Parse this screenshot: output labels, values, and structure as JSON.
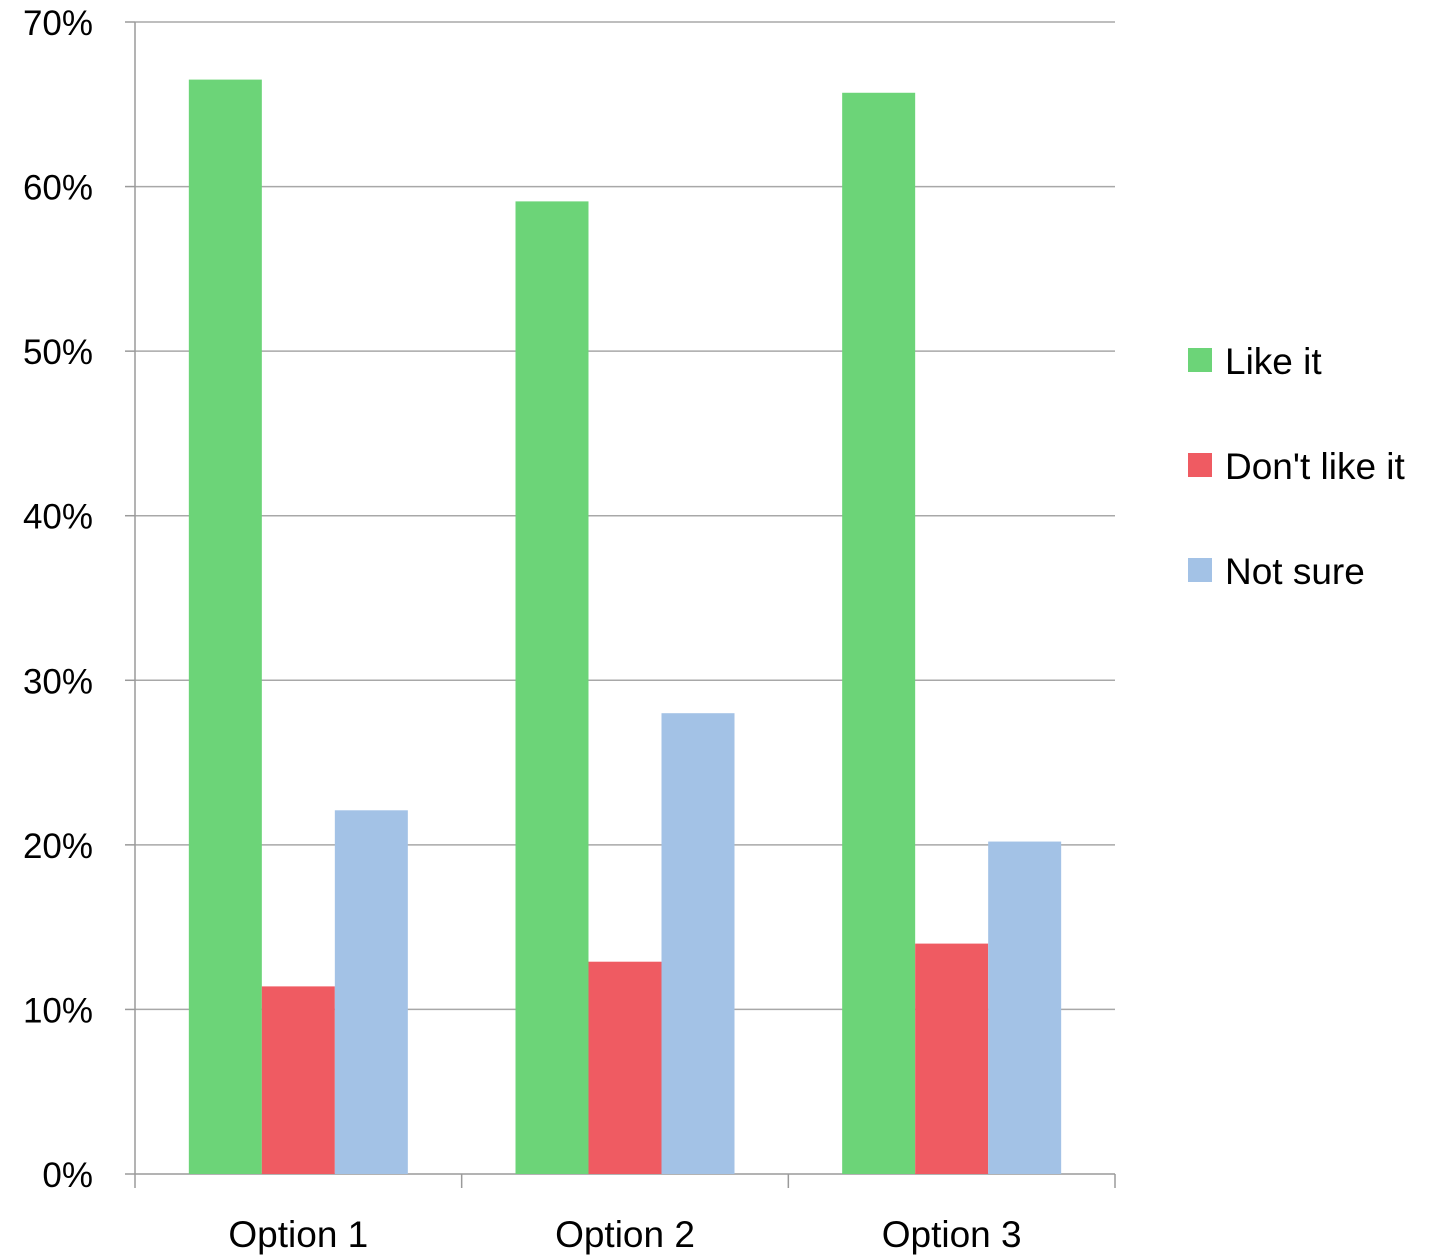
{
  "chart_data": {
    "type": "bar",
    "categories": [
      "Option 1",
      "Option 2",
      "Option 3"
    ],
    "series": [
      {
        "name": "Like it",
        "color": "#6cd478",
        "values": [
          66.5,
          59.1,
          65.7
        ]
      },
      {
        "name": "Don't like it",
        "color": "#ef5b62",
        "values": [
          11.4,
          12.9,
          14.0
        ]
      },
      {
        "name": "Not sure",
        "color": "#a3c2e6",
        "values": [
          22.1,
          28.0,
          20.2
        ]
      }
    ],
    "y_ticks": [
      "0%",
      "10%",
      "20%",
      "30%",
      "40%",
      "50%",
      "60%",
      "70%"
    ],
    "ylim": [
      0,
      70
    ],
    "title": "",
    "xlabel": "",
    "ylabel": "",
    "grid": true,
    "legend_position": "right"
  }
}
